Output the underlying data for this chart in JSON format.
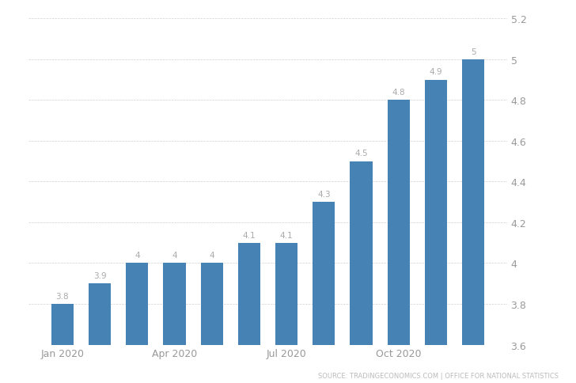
{
  "values": [
    3.8,
    3.9,
    4.0,
    4.0,
    4.0,
    4.1,
    4.1,
    4.3,
    4.5,
    4.8,
    4.9,
    5.0
  ],
  "bar_color": "#4682b4",
  "ylim": [
    3.6,
    5.2
  ],
  "yticks": [
    3.6,
    3.8,
    4.0,
    4.2,
    4.4,
    4.6,
    4.8,
    5.0,
    5.2
  ],
  "xtick_positions": [
    1,
    4,
    7,
    10
  ],
  "xtick_labels": [
    "Jan 2020",
    "Apr 2020",
    "Jul 2020",
    "Oct 2020"
  ],
  "value_labels": [
    "3.8",
    "3.9",
    "4",
    "4",
    "4",
    "4.1",
    "4.1",
    "4.3",
    "4.5",
    "4.8",
    "4.9",
    "5"
  ],
  "source_text": "SOURCE: TRADINGECONOMICS.COM | OFFICE FOR NATIONAL STATISTICS",
  "bg_color": "#ffffff",
  "grid_color": "#d0d0d0",
  "label_color": "#aaaaaa",
  "tick_color": "#999999",
  "bar_width": 0.6
}
